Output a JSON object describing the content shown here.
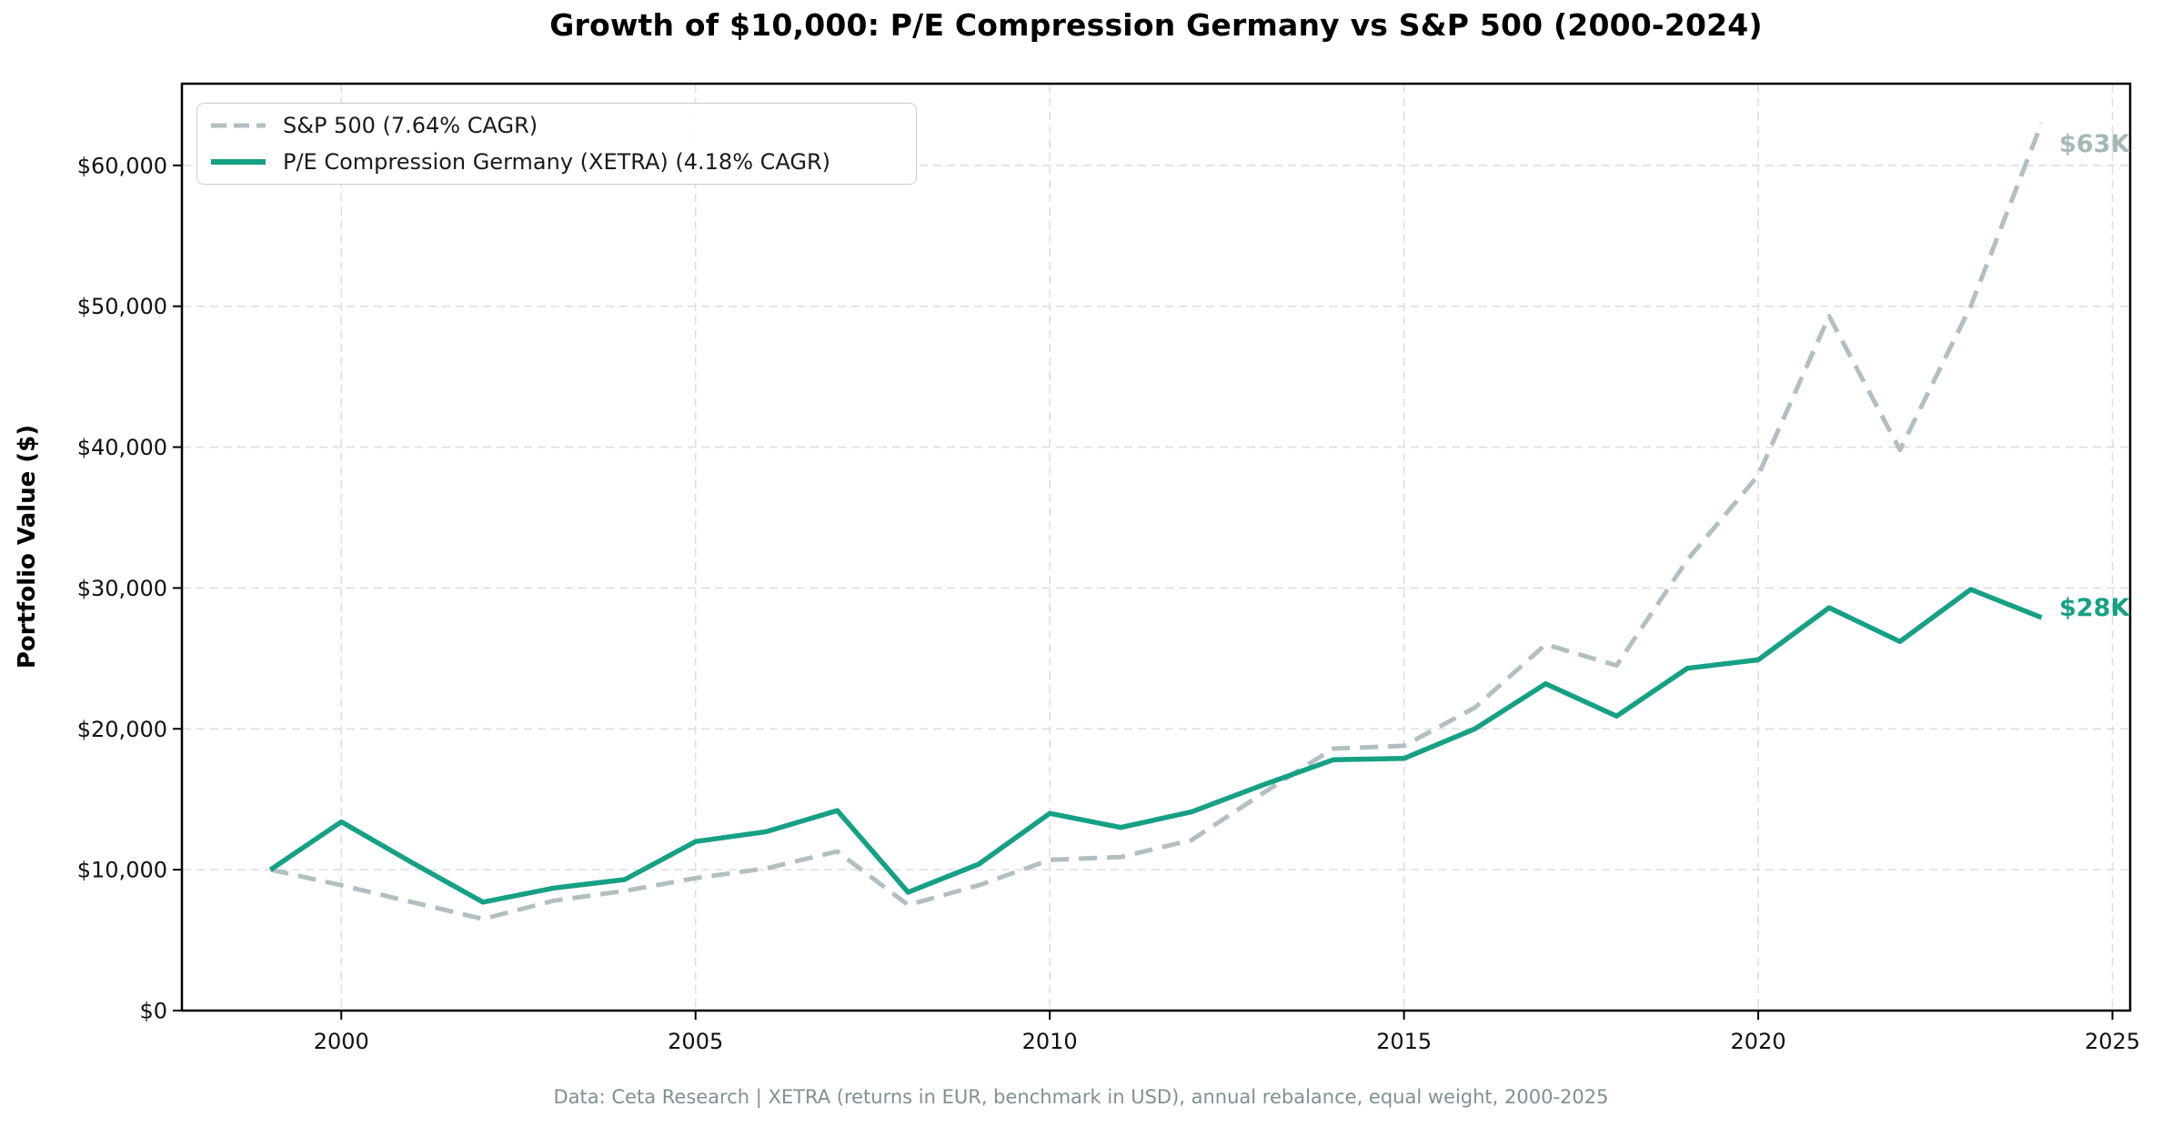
{
  "title": "Growth of $10,000: P/E Compression Germany vs S&P 500 (2000-2024)",
  "footer": "Data: Ceta Research | XETRA (returns in EUR, benchmark in USD), annual rebalance, equal weight, 2000-2025",
  "y_axis_title": "Portfolio Value ($)",
  "annotations": {
    "sp500_end_label": "$63K",
    "germany_end_label": "$28K"
  },
  "legend": {
    "entries": [
      {
        "label": "S&P 500 (7.64% CAGR)"
      },
      {
        "label": "P/E Compression Germany (XETRA) (4.18% CAGR)"
      }
    ]
  },
  "colors": {
    "sp500": "#b2bfc2",
    "germany": "#16a085",
    "sp500_annotation": "#a6b7b7",
    "germany_annotation": "#16a085",
    "footer_text": "#7f9096",
    "grid": "#dedede",
    "axis": "#000000",
    "tick_text": "#111111"
  },
  "chart_data": {
    "type": "line",
    "title": "Growth of $10,000: P/E Compression Germany vs S&P 500 (2000-2024)",
    "xlabel": "",
    "ylabel": "Portfolio Value ($)",
    "x": [
      1999,
      2000,
      2001,
      2002,
      2003,
      2004,
      2005,
      2006,
      2007,
      2008,
      2009,
      2010,
      2011,
      2012,
      2013,
      2014,
      2015,
      2016,
      2017,
      2018,
      2019,
      2020,
      2021,
      2022,
      2023,
      2024
    ],
    "series": [
      {
        "name": "S&P 500 (7.64% CAGR)",
        "style": "dashed",
        "color_key": "sp500",
        "values": [
          10000,
          8900,
          7700,
          6500,
          7800,
          8500,
          9400,
          10100,
          11300,
          7500,
          8900,
          10700,
          10900,
          12100,
          15400,
          18600,
          18800,
          21500,
          26000,
          24500,
          32000,
          38000,
          49300,
          39800,
          50000,
          63000
        ]
      },
      {
        "name": "P/E Compression Germany (XETRA) (4.18% CAGR)",
        "style": "solid",
        "color_key": "germany",
        "values": [
          10000,
          13400,
          10500,
          7700,
          8700,
          9300,
          12000,
          12700,
          14200,
          8400,
          10400,
          14000,
          13000,
          14100,
          16000,
          17800,
          17900,
          20000,
          23200,
          20900,
          24300,
          24900,
          28600,
          26200,
          29900,
          27900
        ]
      }
    ],
    "xlim": [
      1997.75,
      2025.25
    ],
    "ylim": [
      0,
      65800
    ],
    "xticks": [
      2000,
      2005,
      2010,
      2015,
      2020,
      2025
    ],
    "yticks": [
      0,
      10000,
      20000,
      30000,
      40000,
      50000,
      60000
    ],
    "ytick_labels": [
      "$0",
      "$10,000",
      "$20,000",
      "$30,000",
      "$40,000",
      "$50,000",
      "$60,000"
    ],
    "grid": true,
    "legend_position": "upper left"
  }
}
